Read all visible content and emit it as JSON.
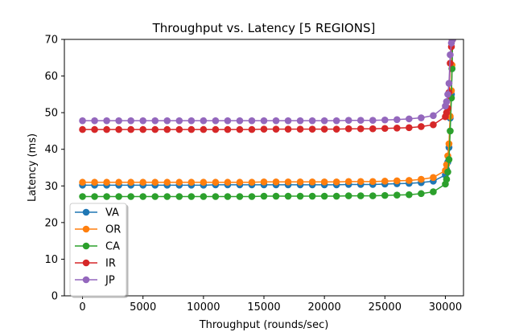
{
  "chart_data": {
    "type": "line",
    "title": "Throughput vs. Latency [5 REGIONS]",
    "xlabel": "Throughput (rounds/sec)",
    "ylabel": "Latency (ms)",
    "xlim": [
      -1500,
      31500
    ],
    "ylim": [
      0,
      70
    ],
    "xticks": [
      0,
      5000,
      10000,
      15000,
      20000,
      25000,
      30000
    ],
    "xtick_labels": [
      "0",
      "5000",
      "10000",
      "15000",
      "20000",
      "25000",
      "30000"
    ],
    "yticks": [
      0,
      10,
      20,
      30,
      40,
      50,
      60,
      70
    ],
    "ytick_labels": [
      "0",
      "10",
      "20",
      "30",
      "40",
      "50",
      "60",
      "70"
    ],
    "grid": false,
    "legend_position": "lower-left",
    "x": [
      0,
      1000,
      2000,
      3000,
      4000,
      5000,
      6000,
      7000,
      8000,
      9000,
      10000,
      11000,
      12000,
      13000,
      14000,
      15000,
      16000,
      17000,
      18000,
      19000,
      20000,
      21000,
      22000,
      23000,
      24000,
      25000,
      26000,
      27000,
      28000,
      29000,
      30000,
      30100,
      30200,
      30300,
      30400,
      30500,
      30550,
      30600
    ],
    "series": [
      {
        "name": "VA",
        "color": "#1f77b4",
        "values": [
          30.2,
          30.2,
          30.2,
          30.2,
          30.2,
          30.2,
          30.2,
          30.2,
          30.2,
          30.2,
          30.2,
          30.3,
          30.3,
          30.3,
          30.3,
          30.3,
          30.3,
          30.3,
          30.3,
          30.3,
          30.3,
          30.3,
          30.4,
          30.4,
          30.4,
          30.5,
          30.6,
          30.7,
          30.9,
          31.3,
          33.0,
          34.5,
          36.5,
          40.5,
          48.5,
          55.0,
          62.0,
          70.0
        ]
      },
      {
        "name": "OR",
        "color": "#ff7f0e",
        "values": [
          31.0,
          31.0,
          31.0,
          31.0,
          31.0,
          31.0,
          31.0,
          31.0,
          31.0,
          31.0,
          31.0,
          31.0,
          31.0,
          31.0,
          31.0,
          31.1,
          31.1,
          31.1,
          31.1,
          31.1,
          31.1,
          31.1,
          31.2,
          31.2,
          31.2,
          31.3,
          31.4,
          31.5,
          31.8,
          32.3,
          34.2,
          35.8,
          38.2,
          41.5,
          49.0,
          56.0,
          63.0,
          70.0
        ]
      },
      {
        "name": "CA",
        "color": "#2ca02c",
        "values": [
          27.1,
          27.1,
          27.1,
          27.1,
          27.1,
          27.1,
          27.1,
          27.1,
          27.1,
          27.1,
          27.1,
          27.1,
          27.1,
          27.1,
          27.1,
          27.2,
          27.2,
          27.2,
          27.2,
          27.2,
          27.2,
          27.2,
          27.3,
          27.3,
          27.3,
          27.4,
          27.5,
          27.6,
          27.9,
          28.4,
          30.5,
          31.8,
          33.8,
          37.2,
          45.0,
          54.0,
          62.0,
          70.0
        ]
      },
      {
        "name": "IR",
        "color": "#d62728",
        "values": [
          45.4,
          45.4,
          45.4,
          45.4,
          45.4,
          45.4,
          45.4,
          45.4,
          45.4,
          45.4,
          45.4,
          45.4,
          45.4,
          45.4,
          45.4,
          45.5,
          45.5,
          45.5,
          45.5,
          45.5,
          45.5,
          45.5,
          45.6,
          45.6,
          45.6,
          45.7,
          45.8,
          45.9,
          46.2,
          46.7,
          48.9,
          50.0,
          51.2,
          55.5,
          63.5,
          68.0,
          70.0,
          70.0
        ]
      },
      {
        "name": "JP",
        "color": "#9467bd",
        "values": [
          47.8,
          47.8,
          47.8,
          47.8,
          47.8,
          47.8,
          47.8,
          47.8,
          47.8,
          47.8,
          47.8,
          47.8,
          47.8,
          47.8,
          47.8,
          47.8,
          47.8,
          47.8,
          47.8,
          47.8,
          47.8,
          47.8,
          47.9,
          47.9,
          47.9,
          48.0,
          48.1,
          48.3,
          48.6,
          49.2,
          51.8,
          53.0,
          55.0,
          58.0,
          65.8,
          69.0,
          70.0,
          70.0
        ]
      }
    ]
  }
}
